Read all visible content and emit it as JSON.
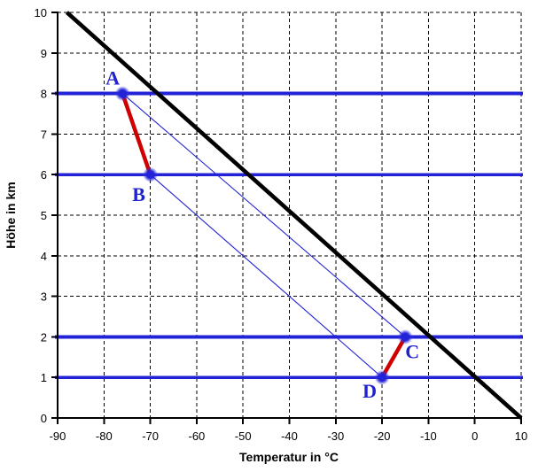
{
  "chart_data": {
    "type": "line",
    "title": "",
    "xlabel": "Temperatur in °C",
    "ylabel": "Höhe in km",
    "xlim": [
      -90,
      10
    ],
    "ylim": [
      0,
      10
    ],
    "xticks": [
      -90,
      -80,
      -70,
      -60,
      -50,
      -40,
      -30,
      -20,
      -10,
      0,
      10
    ],
    "yticks": [
      0,
      1,
      2,
      3,
      4,
      5,
      6,
      7,
      8,
      9,
      10
    ],
    "grid": {
      "shown": true,
      "style": "dashed",
      "color": "#000000"
    },
    "legend": "none",
    "points": [
      {
        "label": "A",
        "temperature_c": -76,
        "height_km": 8
      },
      {
        "label": "B",
        "temperature_c": -70,
        "height_km": 6
      },
      {
        "label": "C",
        "temperature_c": -15,
        "height_km": 2
      },
      {
        "label": "D",
        "temperature_c": -20,
        "height_km": 1
      }
    ],
    "gradient_line": {
      "description": "thick black temperature gradient line",
      "color": "#000000",
      "points": [
        {
          "temperature_c": -88,
          "height_km": 10
        },
        {
          "temperature_c": 10,
          "height_km": 0
        }
      ]
    },
    "level_lines": {
      "description": "horizontal blue altitude lines",
      "color": "#2222d6",
      "heights_km": [
        1,
        2,
        6,
        8
      ]
    },
    "red_segments": {
      "description": "thick red segments between points",
      "color": "#cf0000",
      "pairs": [
        [
          "A",
          "B"
        ],
        [
          "C",
          "D"
        ]
      ]
    },
    "thin_lines": {
      "description": "thin blue ascent lines between points",
      "color": "#2222d6",
      "pairs": [
        [
          "A",
          "C"
        ],
        [
          "B",
          "D"
        ]
      ]
    },
    "point_style": {
      "dot_color": "#2222d6",
      "label_color": "#2222cc"
    },
    "colors": {
      "background": "#ffffff",
      "axis": "#000000"
    }
  }
}
